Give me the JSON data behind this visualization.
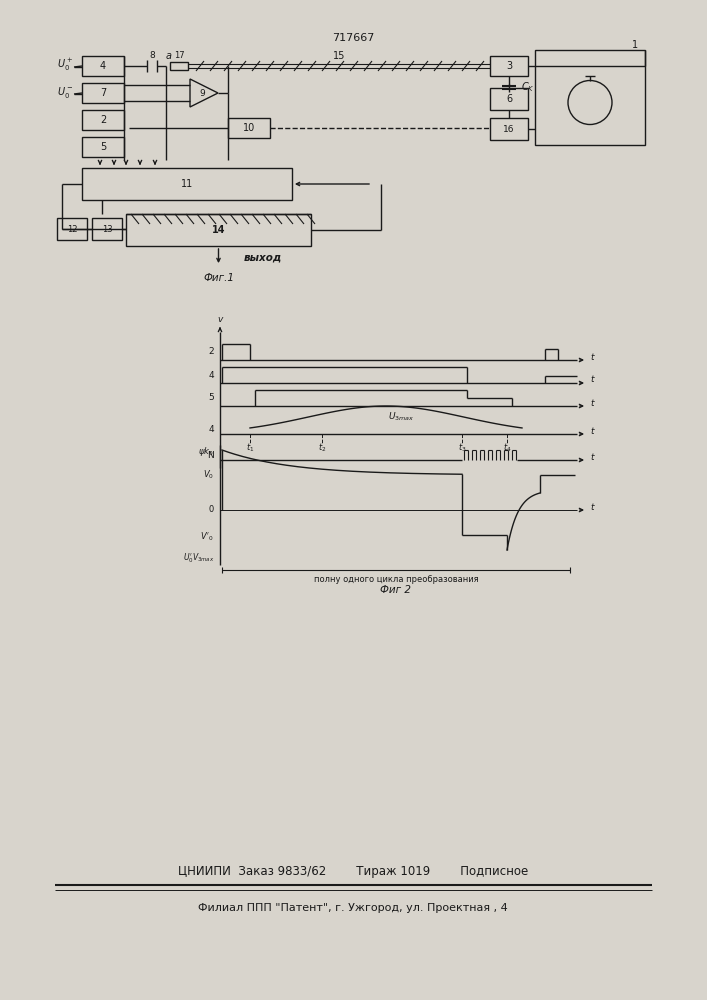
{
  "title": "717667",
  "bg_color": "#d8d4cc",
  "line_color": "#1a1a1a",
  "bottom_line1": "ЦНИИПИ  Заказ 9833/62        Тираж 1019        Подписное",
  "bottom_line2": "Филиал ППП \"Патент\", г. Ужгород, ул. Проектная , 4"
}
